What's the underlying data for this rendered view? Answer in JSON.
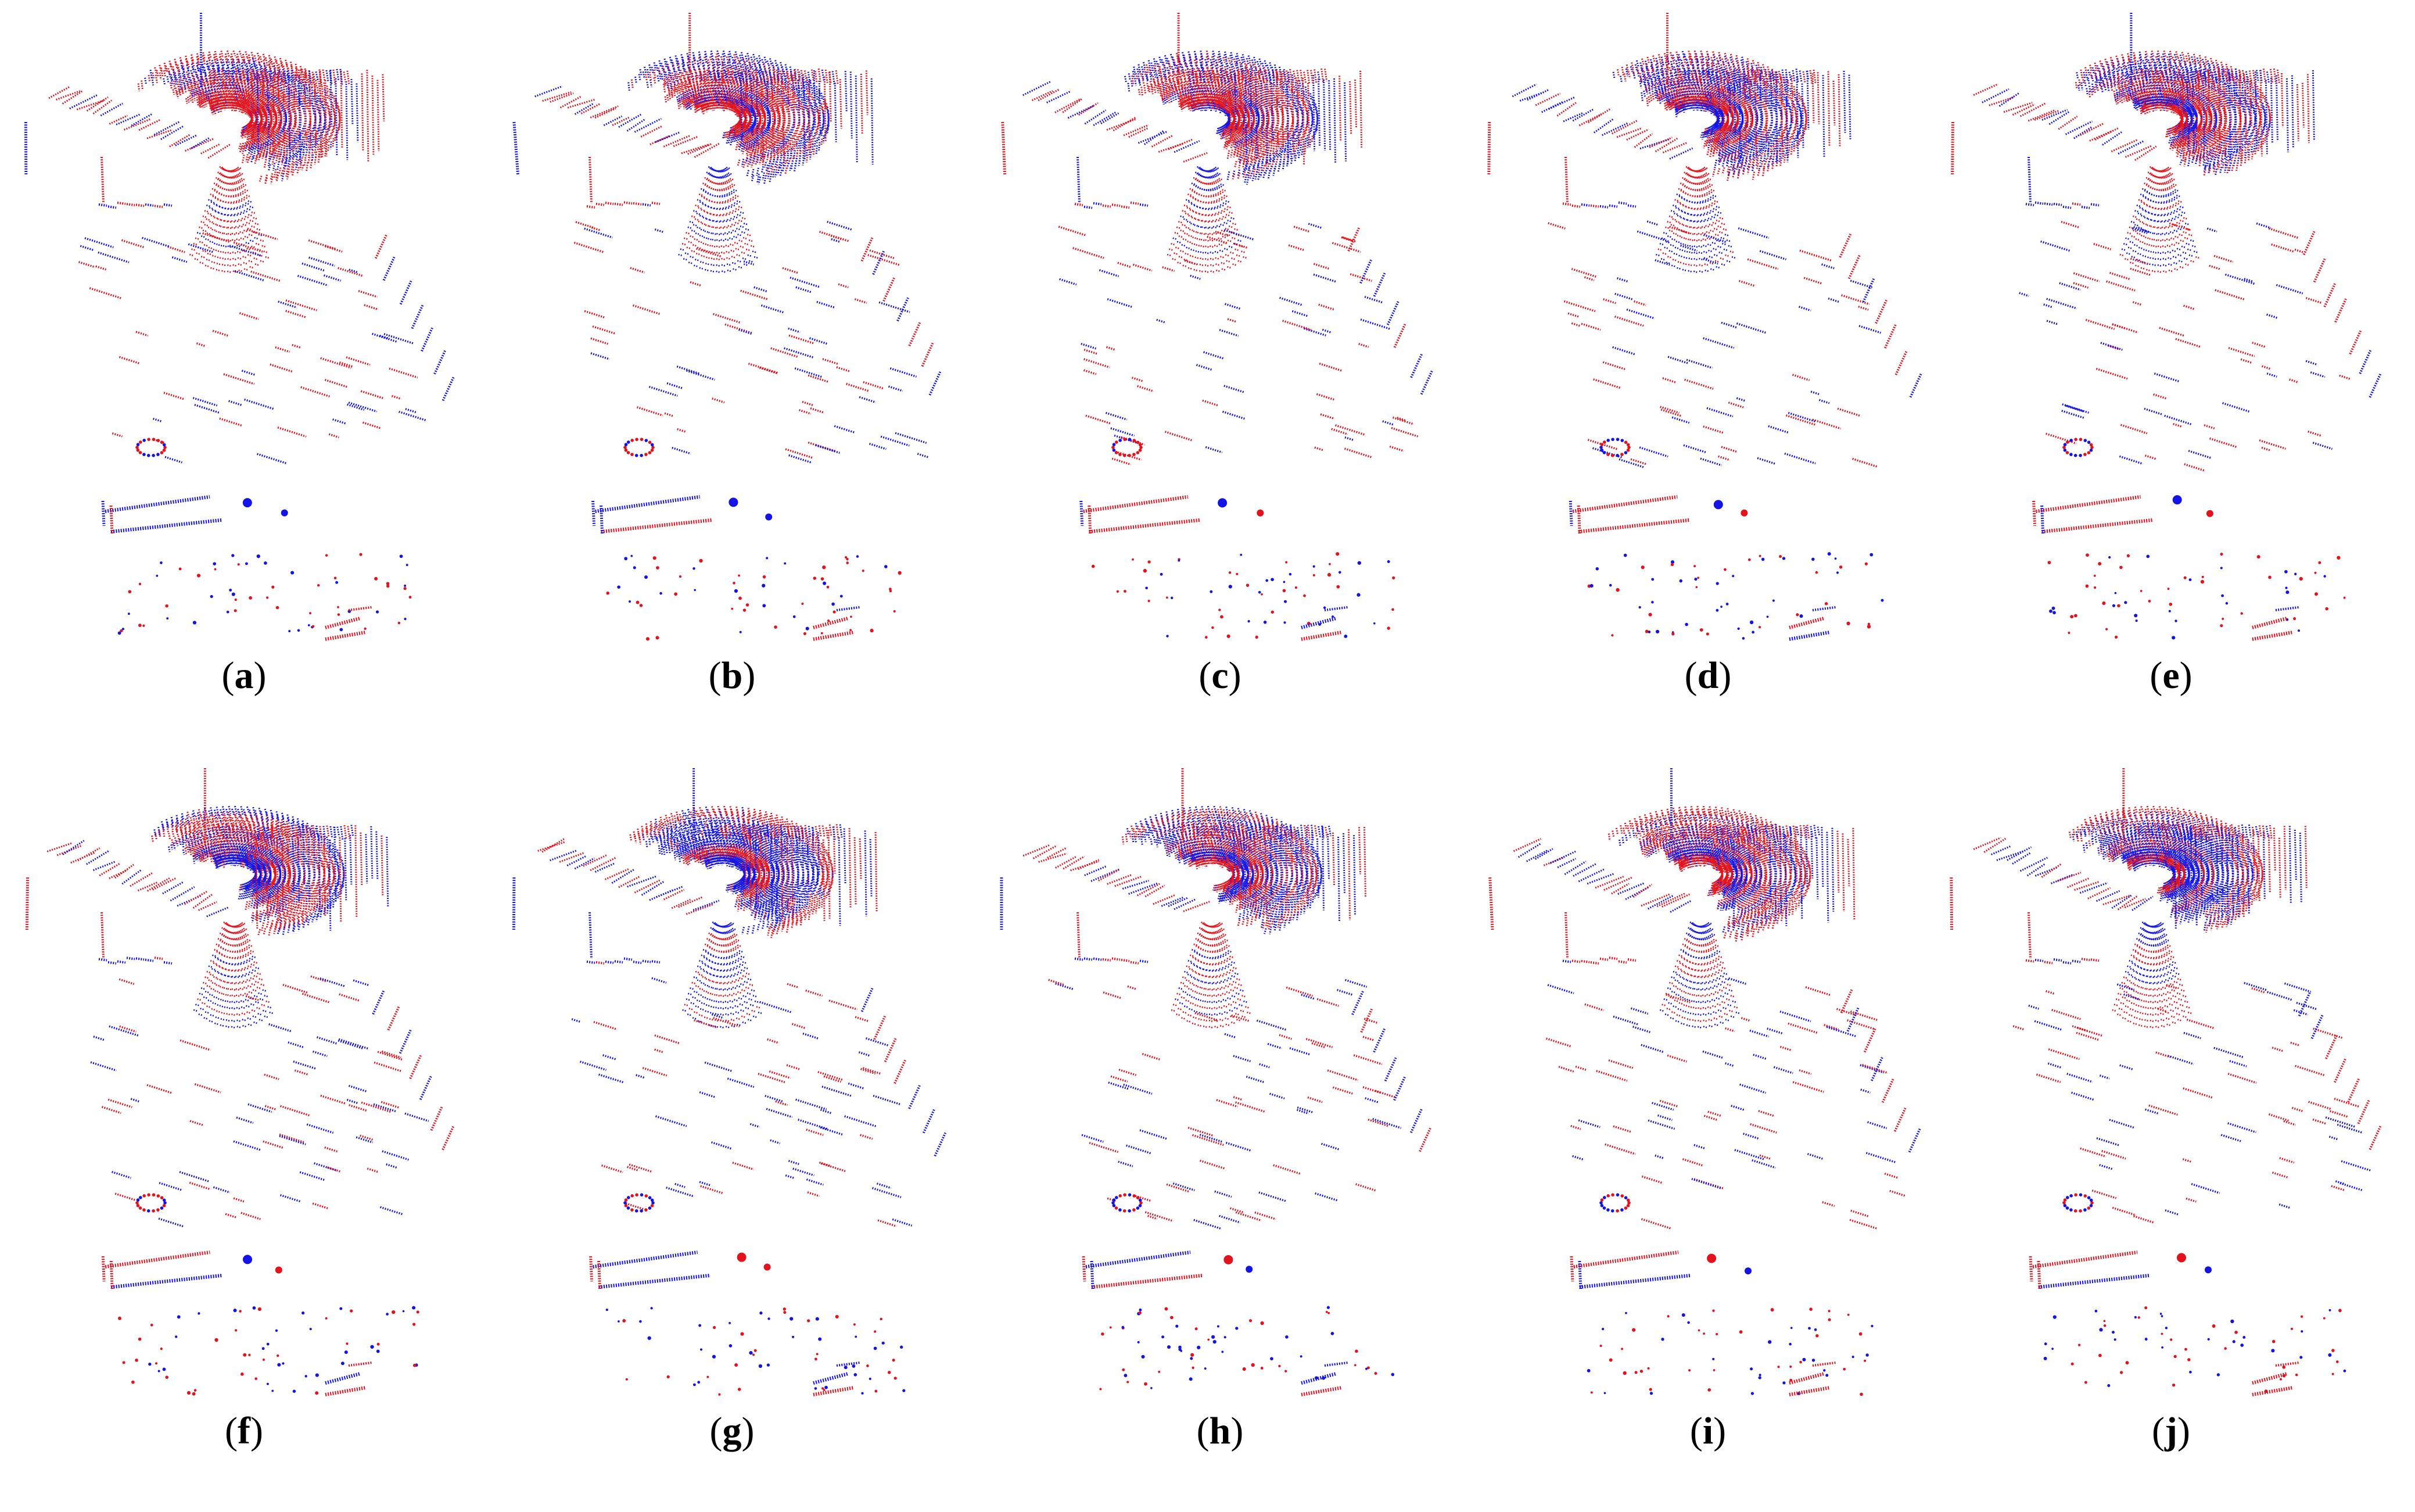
{
  "colors": {
    "scan_a": "#e3121d",
    "scan_b": "#1414e8",
    "background": "#ffffff"
  },
  "panels": [
    {
      "letter": "a",
      "open": "(",
      "close": ")",
      "red_share": 0.55
    },
    {
      "letter": "b",
      "open": "(",
      "close": ")",
      "red_share": 0.6
    },
    {
      "letter": "c",
      "open": "(",
      "close": ")",
      "red_share": 0.62
    },
    {
      "letter": "d",
      "open": "(",
      "close": ")",
      "red_share": 0.5
    },
    {
      "letter": "e",
      "open": "(",
      "close": ")",
      "red_share": 0.58
    },
    {
      "letter": "f",
      "open": "(",
      "close": ")",
      "red_share": 0.52
    },
    {
      "letter": "g",
      "open": "(",
      "close": ")",
      "red_share": 0.48
    },
    {
      "letter": "h",
      "open": "(",
      "close": ")",
      "red_share": 0.56
    },
    {
      "letter": "i",
      "open": "(",
      "close": ")",
      "red_share": 0.57
    },
    {
      "letter": "j",
      "open": "(",
      "close": ")",
      "red_share": 0.53
    }
  ]
}
